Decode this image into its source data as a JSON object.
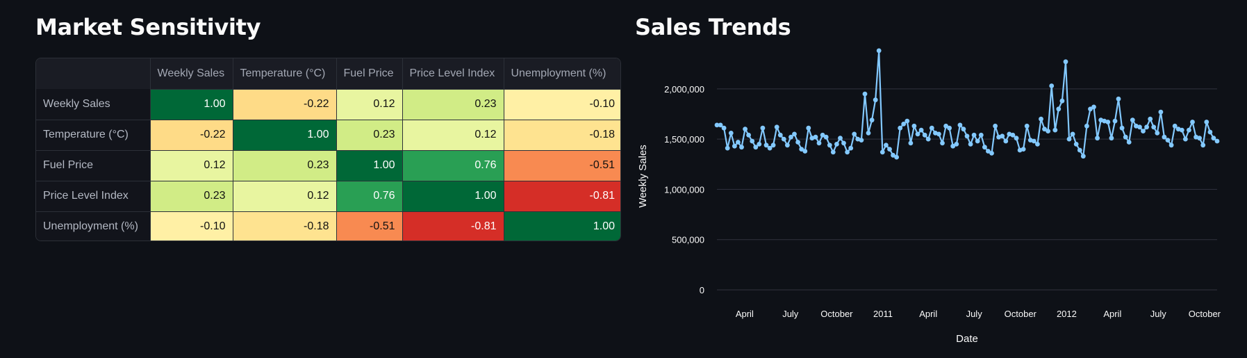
{
  "left_section": {
    "title": "Market Sensitivity"
  },
  "right_section": {
    "title": "Sales Trends"
  },
  "colors": {
    "background": "#0e1117",
    "line": "#83c9ff",
    "grid": "#31333f",
    "heat_pos_strong": "#006837",
    "heat_neg_strong": "#a50026"
  },
  "correlation_table": {
    "headers": [
      "",
      "Weekly Sales",
      "Temperature (°C)",
      "Fuel Price",
      "Price Level Index",
      "Unemployment (%)"
    ],
    "rows": [
      {
        "label": "Weekly Sales",
        "values": [
          "1.00",
          "-0.22",
          "0.12",
          "0.23",
          "-0.10"
        ]
      },
      {
        "label": "Temperature (°C)",
        "values": [
          "-0.22",
          "1.00",
          "0.23",
          "0.12",
          "-0.18"
        ]
      },
      {
        "label": "Fuel Price",
        "values": [
          "0.12",
          "0.23",
          "1.00",
          "0.76",
          "-0.51"
        ]
      },
      {
        "label": "Price Level Index",
        "values": [
          "0.23",
          "0.12",
          "0.76",
          "1.00",
          "-0.81"
        ]
      },
      {
        "label": "Unemployment (%)",
        "values": [
          "-0.10",
          "-0.18",
          "-0.51",
          "-0.81",
          "1.00"
        ]
      }
    ]
  },
  "chart_data": {
    "type": "line",
    "xlabel": "Date",
    "ylabel": "Weekly Sales",
    "xlim": [
      "2010-02-05",
      "2012-10-26"
    ],
    "ylim": [
      0,
      2400000
    ],
    "yticks": [
      0,
      500000,
      1000000,
      1500000,
      2000000
    ],
    "ytick_labels": [
      "0",
      "500,000",
      "1,000,000",
      "1,500,000",
      "2,000,000"
    ],
    "xticks": [
      {
        "date": "2010-04-01",
        "label": "April"
      },
      {
        "date": "2010-07-01",
        "label": "July"
      },
      {
        "date": "2010-10-01",
        "label": "October"
      },
      {
        "date": "2011-01-01",
        "label": "2011"
      },
      {
        "date": "2011-04-01",
        "label": "April"
      },
      {
        "date": "2011-07-01",
        "label": "July"
      },
      {
        "date": "2011-10-01",
        "label": "October"
      },
      {
        "date": "2012-01-01",
        "label": "2012"
      },
      {
        "date": "2012-04-01",
        "label": "April"
      },
      {
        "date": "2012-07-01",
        "label": "July"
      },
      {
        "date": "2012-10-01",
        "label": "October"
      }
    ],
    "grid": "horizontal",
    "start_date": "2010-02-05",
    "interval_days": 7,
    "series": [
      {
        "values": [
          1640000,
          1640000,
          1610000,
          1410000,
          1560000,
          1430000,
          1470000,
          1420000,
          1600000,
          1540000,
          1480000,
          1420000,
          1450000,
          1610000,
          1440000,
          1410000,
          1440000,
          1620000,
          1540000,
          1500000,
          1440000,
          1520000,
          1550000,
          1470000,
          1400000,
          1380000,
          1610000,
          1510000,
          1520000,
          1460000,
          1540000,
          1520000,
          1440000,
          1370000,
          1450000,
          1510000,
          1460000,
          1370000,
          1410000,
          1550000,
          1500000,
          1490000,
          1950000,
          1560000,
          1690000,
          1890000,
          2380000,
          1370000,
          1440000,
          1400000,
          1340000,
          1320000,
          1610000,
          1650000,
          1680000,
          1460000,
          1630000,
          1550000,
          1590000,
          1540000,
          1500000,
          1610000,
          1560000,
          1550000,
          1460000,
          1630000,
          1610000,
          1430000,
          1450000,
          1640000,
          1600000,
          1530000,
          1450000,
          1540000,
          1480000,
          1540000,
          1420000,
          1380000,
          1360000,
          1630000,
          1520000,
          1530000,
          1480000,
          1550000,
          1540000,
          1510000,
          1390000,
          1400000,
          1630000,
          1490000,
          1480000,
          1450000,
          1700000,
          1600000,
          1580000,
          2030000,
          1590000,
          1800000,
          1880000,
          2270000,
          1500000,
          1550000,
          1450000,
          1390000,
          1330000,
          1630000,
          1800000,
          1820000,
          1510000,
          1690000,
          1680000,
          1670000,
          1510000,
          1680000,
          1900000,
          1610000,
          1520000,
          1470000,
          1690000,
          1630000,
          1620000,
          1580000,
          1620000,
          1700000,
          1620000,
          1560000,
          1770000,
          1520000,
          1490000,
          1440000,
          1630000,
          1600000,
          1590000,
          1500000,
          1590000,
          1670000,
          1520000,
          1510000,
          1440000,
          1670000,
          1570000,
          1510000,
          1480000
        ]
      }
    ]
  }
}
